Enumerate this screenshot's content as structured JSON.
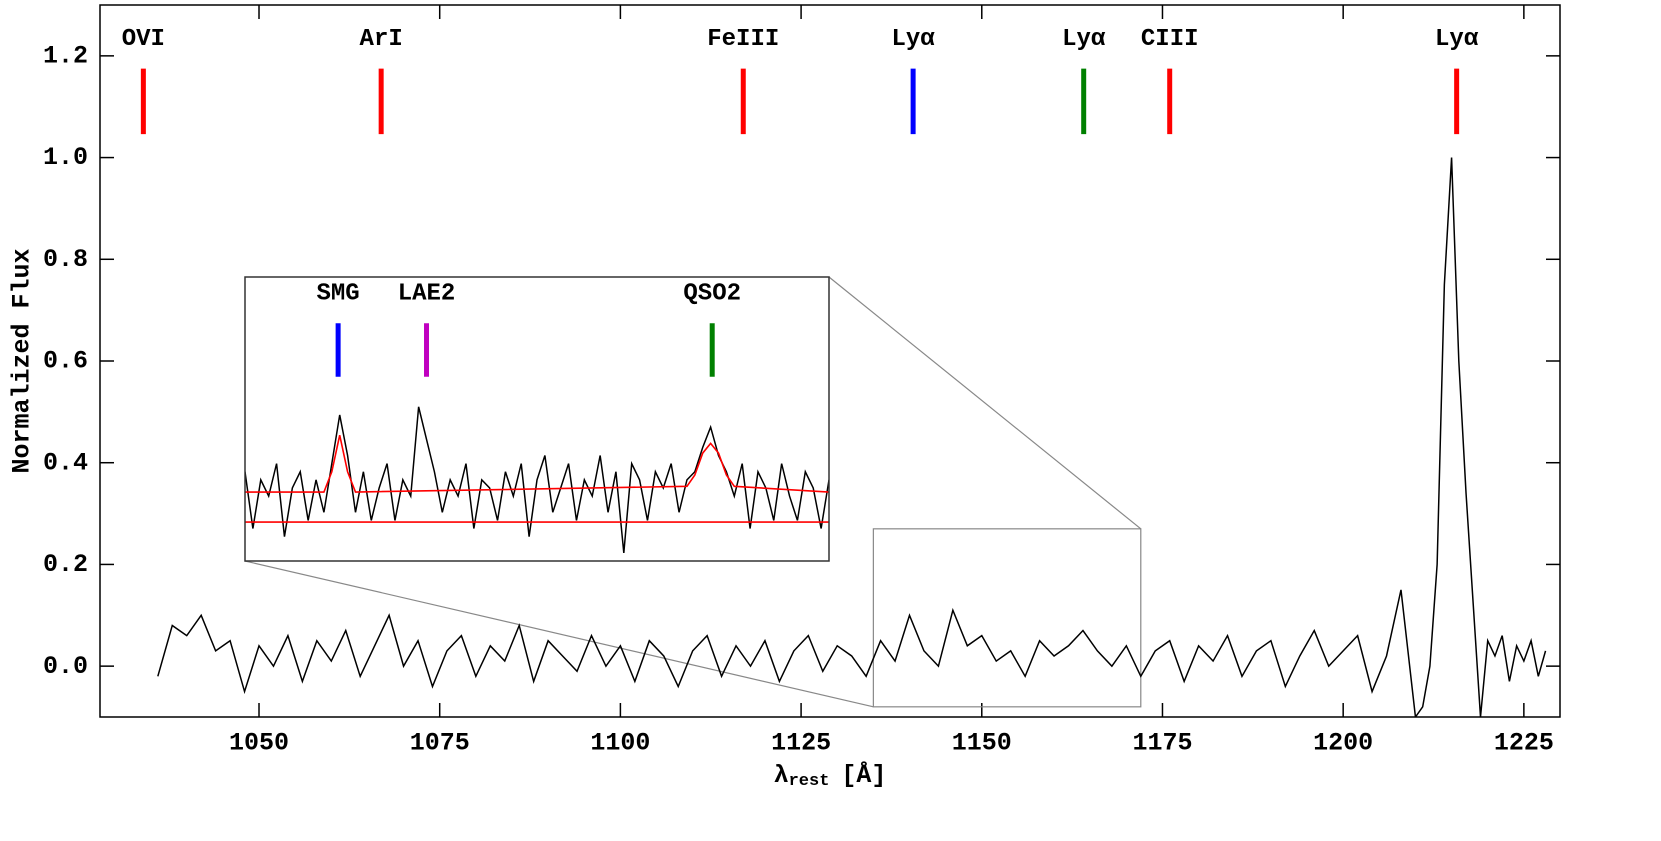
{
  "chart_data": [
    {
      "type": "line",
      "x_label": "λ",
      "x_label_sub": "rest",
      "x_label_unit": "[Å]",
      "y_label": "Normalized Flux",
      "xlim": [
        1028,
        1230
      ],
      "ylim": [
        -0.1,
        1.3
      ],
      "xticks": [
        1050,
        1075,
        1100,
        1125,
        1150,
        1175,
        1200,
        1225
      ],
      "yticks": [
        {
          "value": 0,
          "label": "0.0"
        },
        0.2,
        0.4,
        0.6,
        0.8,
        {
          "value": 1,
          "label": "1.0"
        },
        1.2
      ],
      "series": [
        {
          "color": "#000000",
          "x": [
            1036,
            1038,
            1040,
            1042,
            1044,
            1046,
            1048,
            1050,
            1052,
            1054,
            1056,
            1058,
            1060,
            1062,
            1064,
            1066,
            1068,
            1070,
            1072,
            1074,
            1076,
            1078,
            1080,
            1082,
            1084,
            1086,
            1088,
            1090,
            1092,
            1094,
            1096,
            1098,
            1100,
            1102,
            1104,
            1106,
            1108,
            1110,
            1112,
            1114,
            1116,
            1118,
            1120,
            1122,
            1124,
            1126,
            1128,
            1130,
            1132,
            1134,
            1136,
            1138,
            1140,
            1142,
            1144,
            1146,
            1148,
            1150,
            1152,
            1154,
            1156,
            1158,
            1160,
            1162,
            1164,
            1166,
            1168,
            1170,
            1172,
            1174,
            1176,
            1178,
            1180,
            1182,
            1184,
            1186,
            1188,
            1190,
            1192,
            1194,
            1196,
            1198,
            1200,
            1202,
            1204,
            1206,
            1208,
            1210,
            1211,
            1212,
            1213,
            1214,
            1215,
            1216,
            1217,
            1218,
            1219,
            1220,
            1221,
            1222,
            1223,
            1224,
            1225,
            1226,
            1227,
            1228
          ],
          "values": [
            -0.02,
            0.08,
            0.06,
            0.1,
            0.03,
            0.05,
            -0.05,
            0.04,
            0.0,
            0.06,
            -0.03,
            0.05,
            0.01,
            0.07,
            -0.02,
            0.04,
            0.1,
            0.0,
            0.05,
            -0.04,
            0.03,
            0.06,
            -0.02,
            0.04,
            0.01,
            0.08,
            -0.03,
            0.05,
            0.02,
            -0.01,
            0.06,
            0.0,
            0.04,
            -0.03,
            0.05,
            0.02,
            -0.04,
            0.03,
            0.06,
            -0.02,
            0.04,
            0.0,
            0.05,
            -0.03,
            0.03,
            0.06,
            -0.01,
            0.04,
            0.02,
            -0.02,
            0.05,
            0.01,
            0.1,
            0.03,
            0.0,
            0.11,
            0.04,
            0.06,
            0.01,
            0.03,
            -0.02,
            0.05,
            0.02,
            0.04,
            0.07,
            0.03,
            0.0,
            0.04,
            -0.02,
            0.03,
            0.05,
            -0.03,
            0.04,
            0.01,
            0.06,
            -0.02,
            0.03,
            0.05,
            -0.04,
            0.02,
            0.07,
            0.0,
            0.03,
            0.06,
            -0.05,
            0.02,
            0.15,
            -0.1,
            -0.08,
            0.0,
            0.2,
            0.75,
            1.0,
            0.6,
            0.34,
            0.12,
            -0.1,
            0.05,
            0.02,
            0.06,
            -0.03,
            0.04,
            0.01,
            0.05,
            -0.02,
            0.03
          ]
        }
      ],
      "line_span": [
        1.046,
        1.175
      ],
      "lines": [
        {
          "label": "OVI",
          "x": 1034.0,
          "color": "#ff0000"
        },
        {
          "label": "ArI",
          "x": 1066.9,
          "color": "#ff0000"
        },
        {
          "label": "FeIII",
          "x": 1117.0,
          "color": "#ff0000"
        },
        {
          "label": "Lyα",
          "x": 1140.5,
          "color": "#0000ff"
        },
        {
          "label": "Lyα",
          "x": 1164.1,
          "color": "#008000"
        },
        {
          "label": "CIII",
          "x": 1176.0,
          "color": "#ff0000"
        },
        {
          "label": "Lyα",
          "x": 1215.7,
          "color": "#ff0000"
        }
      ],
      "zoom_box": {
        "xlim": [
          1135,
          1172
        ],
        "ylim": [
          -0.08,
          0.27
        ]
      }
    },
    {
      "type": "line",
      "xlim": [
        1135,
        1172
      ],
      "ylim": [
        -0.08,
        0.27
      ],
      "series": [
        {
          "color": "#000000",
          "x": [
            1135,
            1135.5,
            1136,
            1136.5,
            1137,
            1137.5,
            1138,
            1138.5,
            1139,
            1139.5,
            1140,
            1140.5,
            1141,
            1141.5,
            1142,
            1142.5,
            1143,
            1143.5,
            1144,
            1144.5,
            1145,
            1145.5,
            1146,
            1146.5,
            1147,
            1147.5,
            1148,
            1148.5,
            1149,
            1149.5,
            1150,
            1150.5,
            1151,
            1151.5,
            1152,
            1152.5,
            1153,
            1153.5,
            1154,
            1154.5,
            1155,
            1155.5,
            1156,
            1156.5,
            1157,
            1157.5,
            1158,
            1158.5,
            1159,
            1159.5,
            1160,
            1160.5,
            1161,
            1161.5,
            1162,
            1162.5,
            1163,
            1163.5,
            1164,
            1164.5,
            1165,
            1165.5,
            1166,
            1166.5,
            1167,
            1167.5,
            1168,
            1168.5,
            1169,
            1169.5,
            1170,
            1170.5,
            1171,
            1171.5,
            1172
          ],
          "values": [
            0.03,
            -0.04,
            0.02,
            0.0,
            0.04,
            -0.05,
            0.01,
            0.03,
            -0.03,
            0.02,
            -0.02,
            0.04,
            0.1,
            0.05,
            -0.02,
            0.03,
            -0.03,
            0.01,
            0.04,
            -0.03,
            0.02,
            0.0,
            0.11,
            0.07,
            0.03,
            -0.02,
            0.02,
            0.0,
            0.04,
            -0.04,
            0.02,
            0.01,
            -0.03,
            0.03,
            0.0,
            0.04,
            -0.05,
            0.02,
            0.05,
            -0.02,
            0.01,
            0.04,
            -0.03,
            0.02,
            0.0,
            0.05,
            -0.02,
            0.03,
            -0.07,
            0.04,
            0.02,
            -0.03,
            0.03,
            0.01,
            0.04,
            -0.02,
            0.02,
            0.03,
            0.06,
            0.085,
            0.05,
            0.03,
            0.0,
            0.04,
            -0.04,
            0.03,
            0.01,
            -0.03,
            0.04,
            0.0,
            -0.03,
            0.03,
            0.01,
            -0.04,
            0.02
          ]
        },
        {
          "color": "#ff0000",
          "x": [
            1135,
            1140,
            1140.5,
            1141,
            1141.5,
            1142,
            1163,
            1163.5,
            1164,
            1164.5,
            1165,
            1165.5,
            1166,
            1172
          ],
          "values": [
            0.005,
            0.005,
            0.03,
            0.075,
            0.03,
            0.005,
            0.012,
            0.026,
            0.053,
            0.065,
            0.053,
            0.026,
            0.012,
            0.005
          ]
        },
        {
          "color": "#ff0000",
          "x": [
            1135,
            1172
          ],
          "values": [
            -0.032,
            -0.032
          ]
        }
      ],
      "line_span": [
        0.147,
        0.213
      ],
      "lines": [
        {
          "label": "SMG",
          "x": 1140.9,
          "color": "#0000ff"
        },
        {
          "label": "LAE2",
          "x": 1146.5,
          "color": "#c000c0"
        },
        {
          "label": "QSO2",
          "x": 1164.6,
          "color": "#008000"
        }
      ]
    }
  ]
}
